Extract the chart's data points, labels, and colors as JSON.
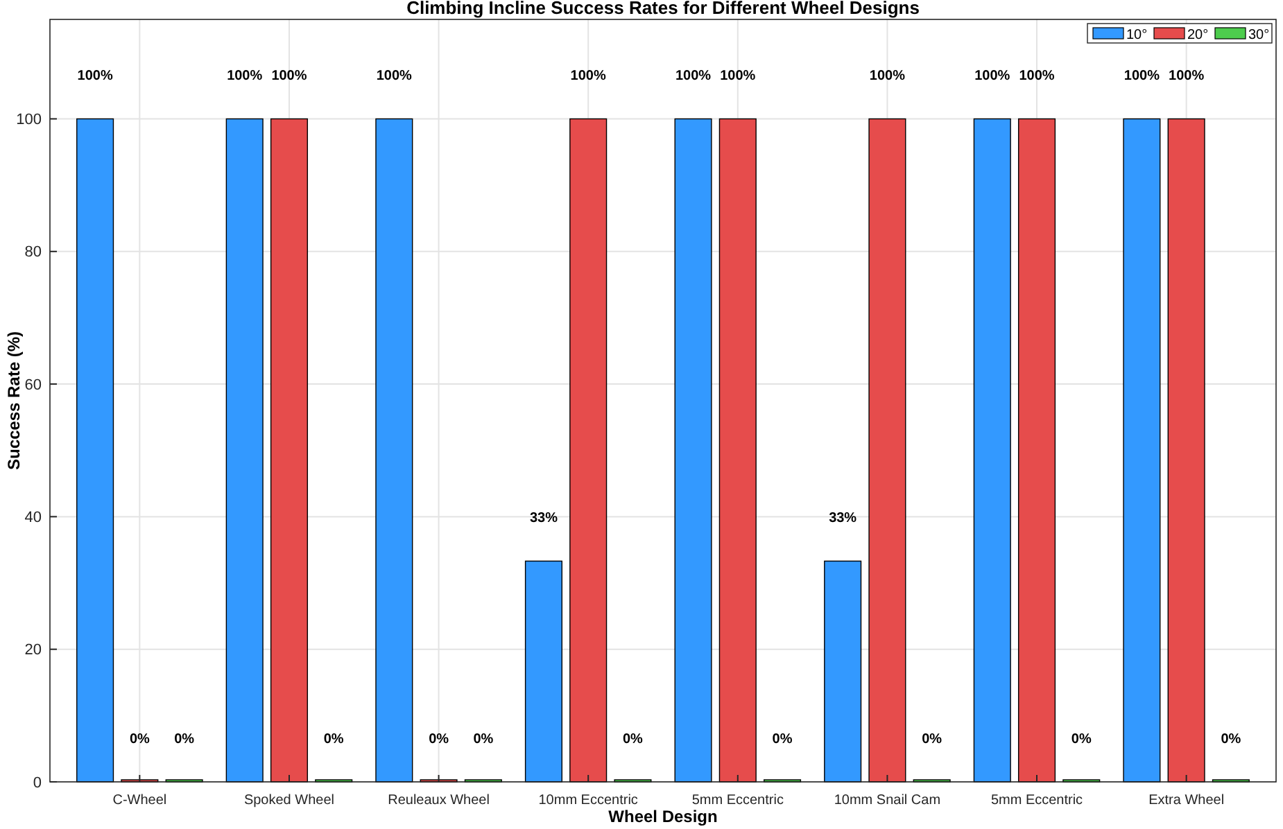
{
  "chart_data": {
    "type": "bar",
    "title": "Climbing Incline Success Rates for Different Wheel Designs",
    "xlabel": "Wheel Design",
    "ylabel": "Success Rate (%)",
    "categories": [
      "C-Wheel",
      "Spoked Wheel",
      "Reuleaux Wheel",
      "10mm Eccentric",
      "5mm Eccentric",
      "10mm Snail Cam",
      "5mm Eccentric",
      "Extra Wheel"
    ],
    "series": [
      {
        "name": "10°",
        "color": "#3399ff",
        "values": [
          100,
          100,
          100,
          33.3,
          100,
          33.3,
          100,
          100
        ],
        "value_labels": [
          "100%",
          "100%",
          "100%",
          "33%",
          "100%",
          "33%",
          "100%",
          "100%"
        ]
      },
      {
        "name": "20°",
        "color": "#e64c4c",
        "values": [
          0,
          100,
          0,
          100,
          100,
          100,
          100,
          100
        ],
        "value_labels": [
          "0%",
          "100%",
          "0%",
          "100%",
          "100%",
          "100%",
          "100%",
          "100%"
        ]
      },
      {
        "name": "30°",
        "color": "#4dcc4d",
        "values": [
          0,
          0,
          0,
          0,
          0,
          0,
          0,
          0
        ],
        "value_labels": [
          "0%",
          "0%",
          "0%",
          "0%",
          "0%",
          "0%",
          "0%",
          "0%"
        ]
      }
    ],
    "ylim": [
      0,
      115
    ],
    "yticks": [
      0,
      20,
      40,
      60,
      80,
      100
    ],
    "grid": true,
    "legend": "top right"
  }
}
